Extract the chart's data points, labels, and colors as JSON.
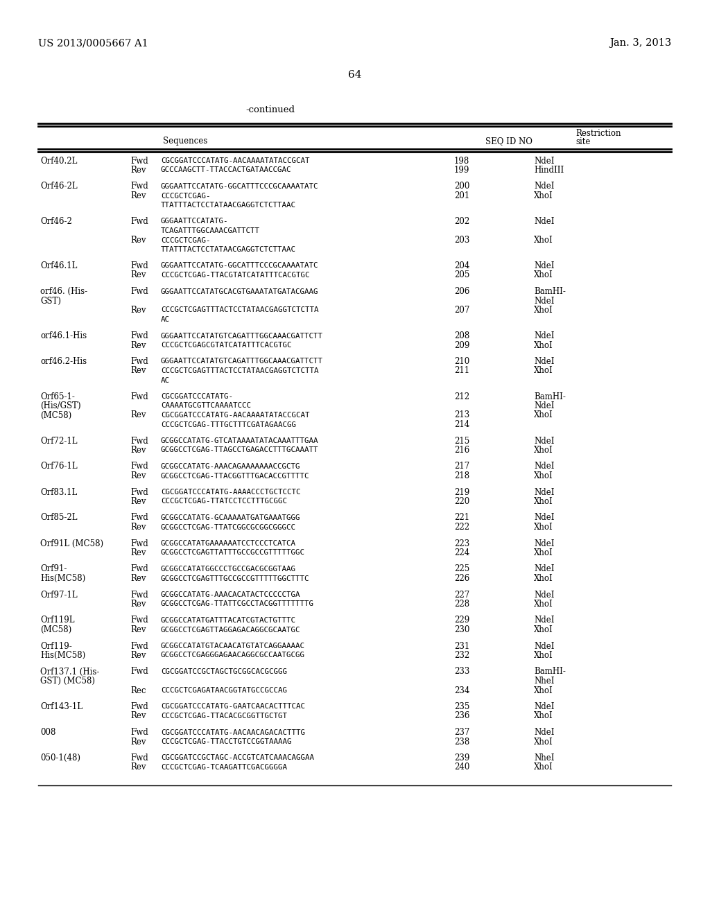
{
  "header_left": "US 2013/0005667 A1",
  "header_right": "Jan. 3, 2013",
  "page_number": "64",
  "continued": "-continued",
  "table_rows": [
    {
      "name": [
        "Orf40.2L"
      ],
      "lines": [
        {
          "dir": "Fwd",
          "seq": "CGCGGATCCCATATG-AACAAAATATACCGCAT",
          "id": "198",
          "site": "NdeI"
        },
        {
          "dir": "Rev",
          "seq": "GCCCAAGCTT-TTACCACTGATAACCGAC",
          "id": "199",
          "site": "HindIII"
        }
      ]
    },
    {
      "name": [
        "Orf46-2L"
      ],
      "lines": [
        {
          "dir": "Fwd",
          "seq": "GGGAATTCCATATG-GGCATTTCCCGCAAAATATC",
          "id": "200",
          "site": "NdeI"
        },
        {
          "dir": "Rev",
          "seq": "CCCGCTCGAG-",
          "id": "201",
          "site": "XhoI"
        },
        {
          "dir": "",
          "seq": "TTATTTACTCCTATAACGAGGTCTCTTAAC",
          "id": "",
          "site": ""
        }
      ]
    },
    {
      "name": [
        "Orf46-2"
      ],
      "lines": [
        {
          "dir": "Fwd",
          "seq": "GGGAATTCCATATG-",
          "id": "202",
          "site": "NdeI"
        },
        {
          "dir": "",
          "seq": "TCAGATTTGGCAAACGATTCTT",
          "id": "",
          "site": ""
        },
        {
          "dir": "Rev",
          "seq": "CCCGCTCGAG-",
          "id": "203",
          "site": "XhoI"
        },
        {
          "dir": "",
          "seq": "TTATTTACTCCTATAACGAGGTCTCTTAAC",
          "id": "",
          "site": ""
        }
      ]
    },
    {
      "name": [
        "Orf46.1L"
      ],
      "lines": [
        {
          "dir": "Fwd",
          "seq": "GGGAATTCCATATG-GGCATTTCCCGCAAAATATC",
          "id": "204",
          "site": "NdeI"
        },
        {
          "dir": "Rev",
          "seq": "CCCGCTCGAG-TTACGTATCATATTTCACGTGC",
          "id": "205",
          "site": "XhoI"
        }
      ]
    },
    {
      "name": [
        "orf46. (His-",
        "GST)"
      ],
      "lines": [
        {
          "dir": "Fwd",
          "seq": "GGGAATTCCATATGCACGTGAAATATGATACGAAG",
          "id": "206",
          "site": "BamHI-"
        },
        {
          "dir": "",
          "seq": "",
          "id": "",
          "site": "NdeI"
        },
        {
          "dir": "Rev",
          "seq": "CCCGCTCGAGTTTACTCCTATAACGAGGTCTCTTA",
          "id": "207",
          "site": "XhoI"
        },
        {
          "dir": "",
          "seq": "AC",
          "id": "",
          "site": ""
        }
      ]
    },
    {
      "name": [
        "orf46.1-His"
      ],
      "lines": [
        {
          "dir": "Fwd",
          "seq": "GGGAATTCCATATGTCAGATTTGGCAAACGATTCTT",
          "id": "208",
          "site": "NdeI"
        },
        {
          "dir": "Rev",
          "seq": "CCCGCTCGAGCGTATCATATTTCACGTGC",
          "id": "209",
          "site": "XhoI"
        }
      ]
    },
    {
      "name": [
        "orf46.2-His"
      ],
      "lines": [
        {
          "dir": "Fwd",
          "seq": "GGGAATTCCATATGTCAGATTTGGCAAACGATTCTT",
          "id": "210",
          "site": "NdeI"
        },
        {
          "dir": "Rev",
          "seq": "CCCGCTCGAGTTTACTCCTATAACGAGGTCTCTTA",
          "id": "211",
          "site": "XhoI"
        },
        {
          "dir": "",
          "seq": "AC",
          "id": "",
          "site": ""
        }
      ]
    },
    {
      "name": [
        "Orf65-1-",
        "(His/GST)",
        "(MC58)"
      ],
      "lines": [
        {
          "dir": "Fwd",
          "seq": "CGCGGATCCCATATG-",
          "id": "212",
          "site": "BamHI-"
        },
        {
          "dir": "",
          "seq": "CAAAATGCGTTCAAAATCCC",
          "id": "",
          "site": "NdeI"
        },
        {
          "dir": "Rev",
          "seq": "CGCGGATCCCATATG-AACAAAATATACCGCAT",
          "id": "213",
          "site": "XhoI"
        },
        {
          "dir": "",
          "seq": "CCCGCTCGAG-TTTGCTTTCGATAGAACGG",
          "id": "214",
          "site": ""
        }
      ]
    },
    {
      "name": [
        "Orf72-1L"
      ],
      "lines": [
        {
          "dir": "Fwd",
          "seq": "GCGGCCATATG-GTCATAAAATATACAAATTTGAA",
          "id": "215",
          "site": "NdeI"
        },
        {
          "dir": "Rev",
          "seq": "GCGGCCTCGAG-TTAGCCTGAGACCTTTGCAAATT",
          "id": "216",
          "site": "XhoI"
        }
      ]
    },
    {
      "name": [
        "Orf76-1L"
      ],
      "lines": [
        {
          "dir": "Fwd",
          "seq": "GCGGCCATATG-AAACAGAAAAAAACCGCTG",
          "id": "217",
          "site": "NdeI"
        },
        {
          "dir": "Rev",
          "seq": "GCGGCCTCGAG-TTACGGTTTGACACCGTTTTC",
          "id": "218",
          "site": "XhoI"
        }
      ]
    },
    {
      "name": [
        "Orf83.1L"
      ],
      "lines": [
        {
          "dir": "Fwd",
          "seq": "CGCGGATCCCATATG-AAAACCCTGCTCCTC",
          "id": "219",
          "site": "NdeI"
        },
        {
          "dir": "Rev",
          "seq": "CCCGCTCGAG-TTATCCTCCTTTGCGGC",
          "id": "220",
          "site": "XhoI"
        }
      ]
    },
    {
      "name": [
        "Orf85-2L"
      ],
      "lines": [
        {
          "dir": "Fwd",
          "seq": "GCGGCCATATG-GCAAAAATGATGAAATGGG",
          "id": "221",
          "site": "NdeI"
        },
        {
          "dir": "Rev",
          "seq": "GCGGCCTCGAG-TTATCGGCGCGGCGGGCC",
          "id": "222",
          "site": "XhoI"
        }
      ]
    },
    {
      "name": [
        "Orf91L (MC58)"
      ],
      "lines": [
        {
          "dir": "Fwd",
          "seq": "GCGGCCATATGAAAAAATCCTCCCTCATCA",
          "id": "223",
          "site": "NdeI"
        },
        {
          "dir": "Rev",
          "seq": "GCGGCCTCGAGTTATTTGCCGCCGTTTTTGGC",
          "id": "224",
          "site": "XhoI"
        }
      ]
    },
    {
      "name": [
        "Orf91-",
        "His(MC58)"
      ],
      "lines": [
        {
          "dir": "Fwd",
          "seq": "GCGGCCATATGGCCCTGCCGACGCGGTAAG",
          "id": "225",
          "site": "NdeI"
        },
        {
          "dir": "Rev",
          "seq": "GCGGCCTCGAGTTTGCCGCCGTTTTTGGCTTTC",
          "id": "226",
          "site": "XhoI"
        }
      ]
    },
    {
      "name": [
        "Orf97-1L"
      ],
      "lines": [
        {
          "dir": "Fwd",
          "seq": "GCGGCCATATG-AAACACATACTCCCCCTGA",
          "id": "227",
          "site": "NdeI"
        },
        {
          "dir": "Rev",
          "seq": "GCGGCCTCGAG-TTATTCGCCTACGGTTTTTTTG",
          "id": "228",
          "site": "XhoI"
        }
      ]
    },
    {
      "name": [
        "Orf119L",
        "(MC58)"
      ],
      "lines": [
        {
          "dir": "Fwd",
          "seq": "GCGGCCATATGATTTACATCGTACTGTTTC",
          "id": "229",
          "site": "NdeI"
        },
        {
          "dir": "Rev",
          "seq": "GCGGCCTCGAGTTAGGAGACAGGCGCAATGC",
          "id": "230",
          "site": "XhoI"
        }
      ]
    },
    {
      "name": [
        "Orf119-",
        "His(MC58)"
      ],
      "lines": [
        {
          "dir": "Fwd",
          "seq": "GCGGCCATATGTACAACATGTATCAGGAAAAC",
          "id": "231",
          "site": "NdeI"
        },
        {
          "dir": "Rev",
          "seq": "GCGGCCTCGAGGGAGAACAGGCGCCAATGCGG",
          "id": "232",
          "site": "XhoI"
        }
      ]
    },
    {
      "name": [
        "Orf137.1 (His-",
        "GST) (MC58)"
      ],
      "lines": [
        {
          "dir": "Fwd",
          "seq": "CGCGGATCCGCTAGCTGCGGCACGCGGG",
          "id": "233",
          "site": "BamHI-"
        },
        {
          "dir": "",
          "seq": "",
          "id": "",
          "site": "NheI"
        },
        {
          "dir": "Rec",
          "seq": "CCCGCTCGAGATAACGGTATGCCGCCAG",
          "id": "234",
          "site": "XhoI"
        }
      ]
    },
    {
      "name": [
        "Orf143-1L"
      ],
      "lines": [
        {
          "dir": "Fwd",
          "seq": "CGCGGATCCCATATG-GAATCAACACTTTCAC",
          "id": "235",
          "site": "NdeI"
        },
        {
          "dir": "Rev",
          "seq": "CCCGCTCGAG-TTACACGCGGTTGCTGT",
          "id": "236",
          "site": "XhoI"
        }
      ]
    },
    {
      "name": [
        "008"
      ],
      "lines": [
        {
          "dir": "Fwd",
          "seq": "CGCGGATCCCATATG-AACAACAGACACTTTG",
          "id": "237",
          "site": "NdeI"
        },
        {
          "dir": "Rev",
          "seq": "CCCGCTCGAG-TTACCTGTCCGGTAAAAG",
          "id": "238",
          "site": "XhoI"
        }
      ]
    },
    {
      "name": [
        "050-1(48)"
      ],
      "lines": [
        {
          "dir": "Fwd",
          "seq": "CGCGGATCCGCTAGC-ACCGTCATCAAACAGGAA",
          "id": "239",
          "site": "NheI"
        },
        {
          "dir": "Rev",
          "seq": "CCCGCTCGAG-TCAAGATTCGACGGGGA",
          "id": "240",
          "site": "XhoI"
        }
      ]
    }
  ]
}
